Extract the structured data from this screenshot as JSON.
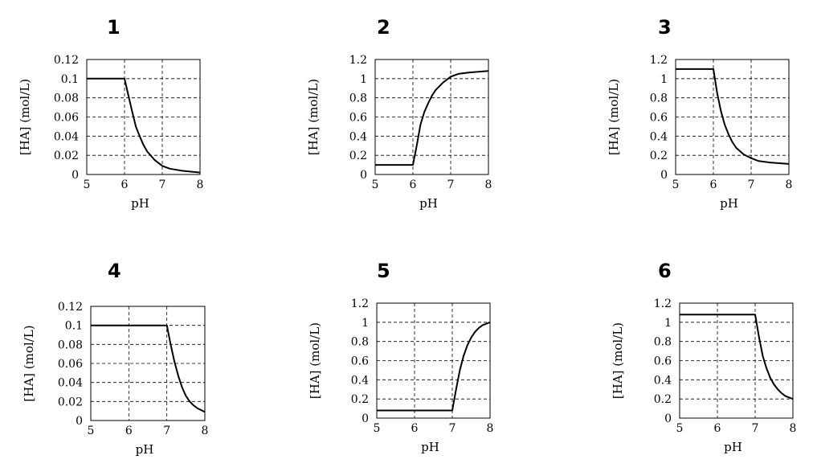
{
  "chart_data": [
    {
      "type": "line",
      "number": "1",
      "xlabel": "pH",
      "ylabel": "[HA] (mol/L)",
      "xlim": [
        5,
        8
      ],
      "ylim": [
        0,
        0.12
      ],
      "grid": true,
      "xticks": [
        "5",
        "6",
        "7",
        "8"
      ],
      "yticks": [
        "0",
        "0.02",
        "0.04",
        "0.06",
        "0.08",
        "0.1",
        "0.12"
      ],
      "series": [
        {
          "x": [
            5,
            6,
            6.1,
            6.2,
            6.3,
            6.4,
            6.5,
            6.6,
            6.8,
            7.0,
            7.2,
            7.5,
            8.0
          ],
          "y": [
            0.1,
            0.1,
            0.083,
            0.066,
            0.05,
            0.04,
            0.031,
            0.024,
            0.015,
            0.009,
            0.006,
            0.004,
            0.002
          ]
        }
      ]
    },
    {
      "type": "line",
      "number": "2",
      "xlabel": "pH",
      "ylabel": "[HA] (mol/L)",
      "xlim": [
        5,
        8
      ],
      "ylim": [
        0,
        1.2
      ],
      "grid": true,
      "xticks": [
        "5",
        "6",
        "7",
        "8"
      ],
      "yticks": [
        "0",
        "0.2",
        "0.4",
        "0.6",
        "0.8",
        "1",
        "1.2"
      ],
      "series": [
        {
          "x": [
            5,
            6,
            6.1,
            6.2,
            6.3,
            6.4,
            6.5,
            6.6,
            6.8,
            7.0,
            7.2,
            7.5,
            8.0
          ],
          "y": [
            0.1,
            0.1,
            0.3,
            0.52,
            0.65,
            0.74,
            0.82,
            0.88,
            0.96,
            1.02,
            1.05,
            1.065,
            1.08
          ]
        }
      ]
    },
    {
      "type": "line",
      "number": "3",
      "xlabel": "pH",
      "ylabel": "[HA] (mol/L)",
      "xlim": [
        5,
        8
      ],
      "ylim": [
        0,
        1.2
      ],
      "grid": true,
      "xticks": [
        "5",
        "6",
        "7",
        "8"
      ],
      "yticks": [
        "0",
        "0.2",
        "0.4",
        "0.6",
        "0.8",
        "1",
        "1.2"
      ],
      "series": [
        {
          "x": [
            5,
            6,
            6.1,
            6.2,
            6.3,
            6.4,
            6.5,
            6.6,
            6.8,
            7.0,
            7.2,
            7.5,
            8.0
          ],
          "y": [
            1.1,
            1.1,
            0.85,
            0.66,
            0.52,
            0.42,
            0.34,
            0.28,
            0.21,
            0.17,
            0.14,
            0.125,
            0.11
          ]
        }
      ]
    },
    {
      "type": "line",
      "number": "4",
      "xlabel": "pH",
      "ylabel": "[HA] (mol/L)",
      "xlim": [
        5,
        8
      ],
      "ylim": [
        0,
        0.12
      ],
      "grid": true,
      "xticks": [
        "5",
        "6",
        "7",
        "8"
      ],
      "yticks": [
        "0",
        "0.02",
        "0.04",
        "0.06",
        "0.08",
        "0.1",
        "0.12"
      ],
      "series": [
        {
          "x": [
            5,
            7,
            7.1,
            7.2,
            7.3,
            7.4,
            7.5,
            7.6,
            7.7,
            7.8,
            8.0
          ],
          "y": [
            0.1,
            0.1,
            0.08,
            0.062,
            0.047,
            0.035,
            0.026,
            0.02,
            0.016,
            0.013,
            0.009
          ]
        }
      ]
    },
    {
      "type": "line",
      "number": "5",
      "xlabel": "pH",
      "ylabel": "[HA] (mol/L)",
      "xlim": [
        5,
        8
      ],
      "ylim": [
        0,
        1.2
      ],
      "grid": true,
      "xticks": [
        "5",
        "6",
        "7",
        "8"
      ],
      "yticks": [
        "0",
        "0.2",
        "0.4",
        "0.6",
        "0.8",
        "1",
        "1.2"
      ],
      "series": [
        {
          "x": [
            5,
            7,
            7.1,
            7.2,
            7.3,
            7.4,
            7.5,
            7.6,
            7.7,
            7.8,
            8.0
          ],
          "y": [
            0.08,
            0.08,
            0.3,
            0.5,
            0.65,
            0.76,
            0.84,
            0.9,
            0.94,
            0.97,
            1.0
          ]
        }
      ]
    },
    {
      "type": "line",
      "number": "6",
      "xlabel": "pH",
      "ylabel": "[HA] (mol/L)",
      "xlim": [
        5,
        8
      ],
      "ylim": [
        0,
        1.2
      ],
      "grid": true,
      "xticks": [
        "5",
        "6",
        "7",
        "8"
      ],
      "yticks": [
        "0",
        "0.2",
        "0.4",
        "0.6",
        "0.8",
        "1",
        "1.2"
      ],
      "series": [
        {
          "x": [
            5,
            7,
            7.1,
            7.2,
            7.3,
            7.4,
            7.5,
            7.6,
            7.7,
            7.8,
            8.0
          ],
          "y": [
            1.08,
            1.08,
            0.85,
            0.65,
            0.52,
            0.42,
            0.35,
            0.3,
            0.26,
            0.23,
            0.2
          ]
        }
      ]
    }
  ]
}
